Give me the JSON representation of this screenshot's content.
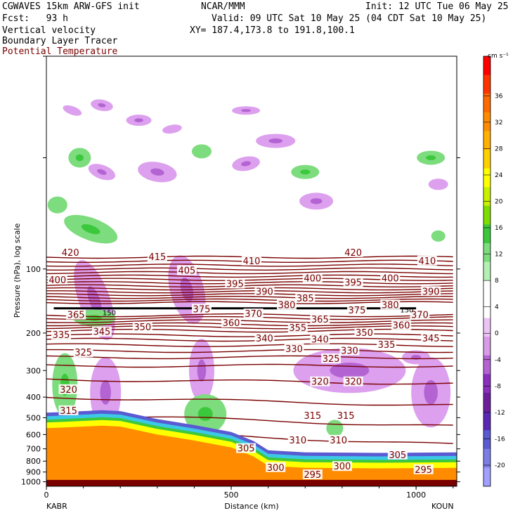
{
  "header": {
    "model": "CGWAVES 15km ARW-GFS init",
    "org": "NCAR/MMM",
    "init": "Init: 12 UTC Tue 06 May 25",
    "fcst": "Fcst:   93 h",
    "valid": "Valid: 09 UTC Sat 10 May 25 (04 CDT Sat 10 May 25)",
    "field1": "Vertical velocity",
    "xy": "XY= 187.4,173.8 to 191.8,100.1",
    "field2": "Boundary Layer Tracer",
    "field3": "Potential Temperature"
  },
  "colors": {
    "theta_line": "#7a0000",
    "theta_label": "#7a0000",
    "tropopause": "#000000",
    "terrain": "#ff8c00",
    "upward": "#7ddc7d",
    "downward": "#dca0ee"
  },
  "chart_data": {
    "type": "cross-section",
    "ylabel": "Pressure (hPa), log scale",
    "xlabel": "Distance (km)",
    "x_ticks": [
      "0",
      "500",
      "1000"
    ],
    "y_ticks": [
      "100",
      "200",
      "300",
      "400",
      "500",
      "600",
      "700",
      "800",
      "900",
      "1000"
    ],
    "y_scale": "log",
    "xlim": [
      0,
      1110
    ],
    "ylim": [
      1050,
      10
    ],
    "left_endpoint": "KABR",
    "right_endpoint": "KOUN",
    "colorbar": {
      "unit": "cm s⁻¹",
      "ticks": [
        "36",
        "32",
        "28",
        "24",
        "20",
        "16",
        "12",
        "8",
        "4",
        "0",
        "-4",
        "-8",
        "-12",
        "-16",
        "-20"
      ],
      "colors": [
        "#ff0000",
        "#ff3300",
        "#ff6a00",
        "#ff8c00",
        "#ffb000",
        "#ffd000",
        "#ffff00",
        "#c8f000",
        "#7ddc00",
        "#3cc83c",
        "#7ddc7d",
        "#b4f0b4",
        "#ffffff",
        "#ffffff",
        "#ecc3f5",
        "#d89be8",
        "#b464d2",
        "#8a2fbe",
        "#6e1e9a",
        "#5a28b4",
        "#5a5ad2",
        "#7d7de6",
        "#a0a0ff"
      ]
    },
    "theta_labels": [
      {
        "text": "420",
        "x": 65,
        "p": 84
      },
      {
        "text": "415",
        "x": 300,
        "p": 88
      },
      {
        "text": "410",
        "x": 555,
        "p": 92
      },
      {
        "text": "420",
        "x": 830,
        "p": 84
      },
      {
        "text": "410",
        "x": 1030,
        "p": 92
      },
      {
        "text": "400",
        "x": 30,
        "p": 113
      },
      {
        "text": "405",
        "x": 380,
        "p": 102
      },
      {
        "text": "400",
        "x": 720,
        "p": 111
      },
      {
        "text": "395",
        "x": 830,
        "p": 116
      },
      {
        "text": "400",
        "x": 930,
        "p": 111
      },
      {
        "text": "395",
        "x": 510,
        "p": 118
      },
      {
        "text": "390",
        "x": 590,
        "p": 128
      },
      {
        "text": "390",
        "x": 1040,
        "p": 128
      },
      {
        "text": "385",
        "x": 700,
        "p": 138
      },
      {
        "text": "380",
        "x": 650,
        "p": 148
      },
      {
        "text": "380",
        "x": 930,
        "p": 148
      },
      {
        "text": "375",
        "x": 420,
        "p": 155
      },
      {
        "text": "375",
        "x": 840,
        "p": 157
      },
      {
        "text": "370",
        "x": 560,
        "p": 163
      },
      {
        "text": "370",
        "x": 1010,
        "p": 165
      },
      {
        "text": "365",
        "x": 80,
        "p": 165
      },
      {
        "text": "365",
        "x": 740,
        "p": 173
      },
      {
        "text": "360",
        "x": 500,
        "p": 180
      },
      {
        "text": "360",
        "x": 960,
        "p": 185
      },
      {
        "text": "355",
        "x": 680,
        "p": 190
      },
      {
        "text": "350",
        "x": 260,
        "p": 188
      },
      {
        "text": "350",
        "x": 860,
        "p": 200
      },
      {
        "text": "345",
        "x": 150,
        "p": 198
      },
      {
        "text": "345",
        "x": 1040,
        "p": 213
      },
      {
        "text": "340",
        "x": 590,
        "p": 213
      },
      {
        "text": "340",
        "x": 740,
        "p": 215
      },
      {
        "text": "335",
        "x": 40,
        "p": 205
      },
      {
        "text": "335",
        "x": 920,
        "p": 228
      },
      {
        "text": "330",
        "x": 670,
        "p": 238
      },
      {
        "text": "330",
        "x": 820,
        "p": 243
      },
      {
        "text": "325",
        "x": 100,
        "p": 248
      },
      {
        "text": "325",
        "x": 770,
        "p": 265
      },
      {
        "text": "320",
        "x": 60,
        "p": 370
      },
      {
        "text": "320",
        "x": 740,
        "p": 340
      },
      {
        "text": "320",
        "x": 830,
        "p": 340
      },
      {
        "text": "315",
        "x": 60,
        "p": 465
      },
      {
        "text": "315",
        "x": 720,
        "p": 490
      },
      {
        "text": "315",
        "x": 810,
        "p": 490
      },
      {
        "text": "310",
        "x": 680,
        "p": 640
      },
      {
        "text": "310",
        "x": 790,
        "p": 640
      },
      {
        "text": "305",
        "x": 540,
        "p": 700
      },
      {
        "text": "305",
        "x": 950,
        "p": 750
      },
      {
        "text": "300",
        "x": 620,
        "p": 860
      },
      {
        "text": "300",
        "x": 800,
        "p": 850
      },
      {
        "text": "295",
        "x": 720,
        "p": 930
      },
      {
        "text": "295",
        "x": 1020,
        "p": 880
      }
    ],
    "tropopause_label": {
      "text": "150",
      "x": 170,
      "p": 160
    },
    "tropopause_label_right": {
      "text": "150",
      "x": 975,
      "p": 155
    }
  }
}
